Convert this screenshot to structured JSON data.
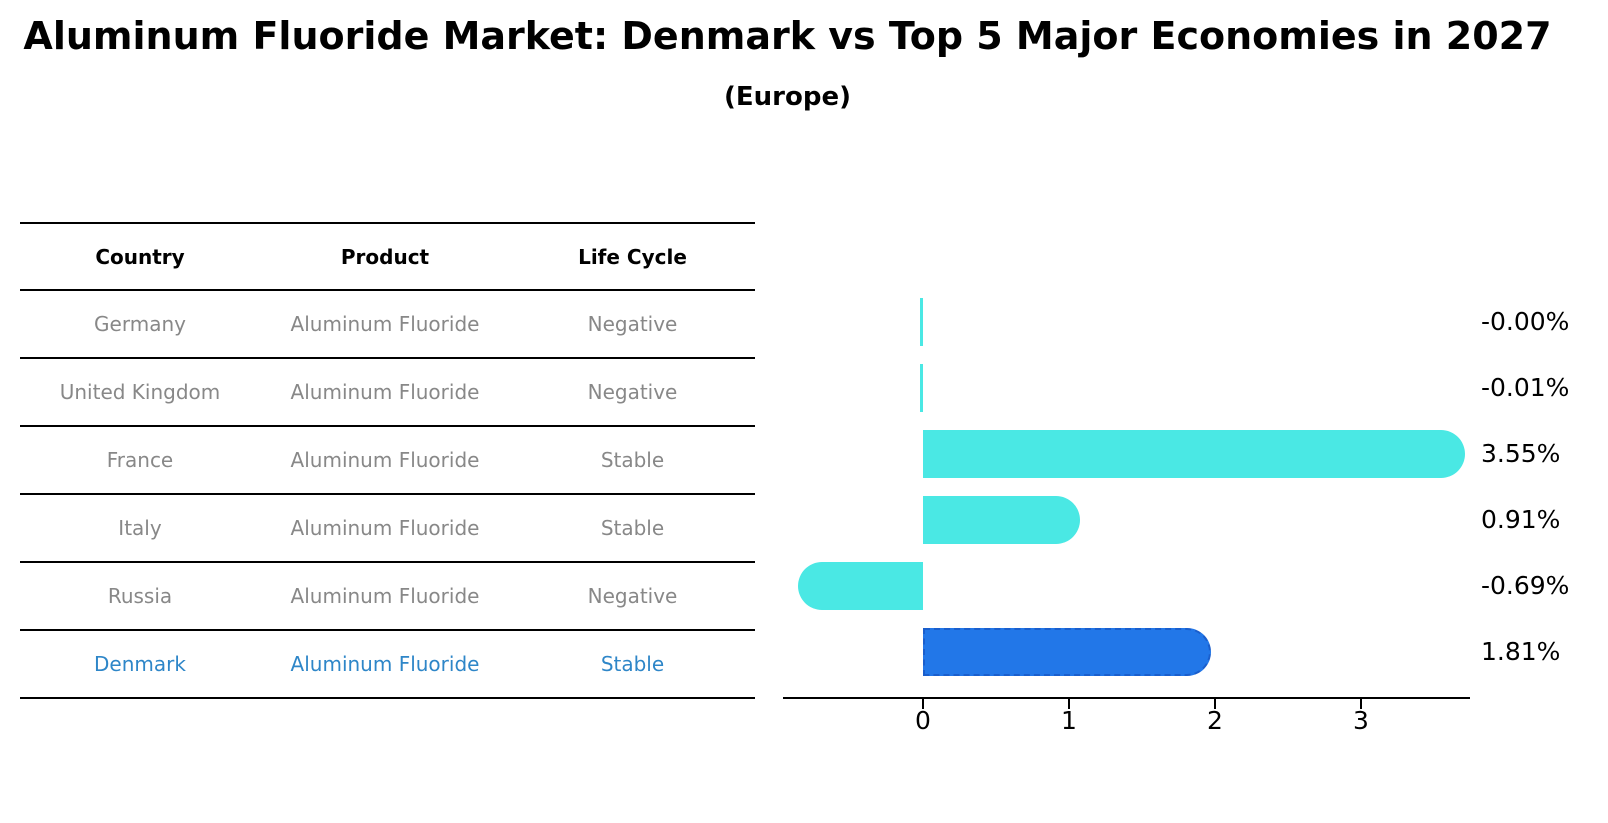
{
  "title": "Aluminum Fluoride Market: Denmark vs Top 5 Major Economies in 2027",
  "subtitle": "(Europe)",
  "table": {
    "headers": {
      "country": "Country",
      "product": "Product",
      "life_cycle": "Life Cycle"
    },
    "rows": [
      {
        "country": "Germany",
        "product": "Aluminum Fluoride",
        "life_cycle": "Negative"
      },
      {
        "country": "United Kingdom",
        "product": "Aluminum Fluoride",
        "life_cycle": "Negative"
      },
      {
        "country": "France",
        "product": "Aluminum Fluoride",
        "life_cycle": "Stable"
      },
      {
        "country": "Italy",
        "product": "Aluminum Fluoride",
        "life_cycle": "Stable"
      },
      {
        "country": "Russia",
        "product": "Aluminum Fluoride",
        "life_cycle": "Negative"
      },
      {
        "country": "Denmark",
        "product": "Aluminum Fluoride",
        "life_cycle": "Stable"
      }
    ],
    "text_color": "#888888",
    "highlight_row": "Denmark",
    "highlight_text_color": "#2E86C8"
  },
  "chart_data": {
    "type": "bar",
    "orientation": "horizontal",
    "title": "Aluminum Fluoride Market: Denmark vs Top 5 Major Economies in 2027 (Europe)",
    "categories": [
      "Germany",
      "United Kingdom",
      "France",
      "Italy",
      "Russia",
      "Denmark"
    ],
    "values": [
      -0.0,
      -0.01,
      3.55,
      0.91,
      -0.69,
      1.81
    ],
    "value_labels": [
      "-0.00%",
      "-0.01%",
      "3.55%",
      "0.91%",
      "-0.69%",
      "1.81%"
    ],
    "x_ticks": [
      "0",
      "1",
      "2",
      "3"
    ],
    "xlim": [
      -0.96,
      3.75
    ],
    "grid": false,
    "legend": false,
    "base_color": "#4AE8E4",
    "highlight_index": 5,
    "highlight_color": "#2277E8",
    "highlight_border_color": "#1A5ECC"
  }
}
